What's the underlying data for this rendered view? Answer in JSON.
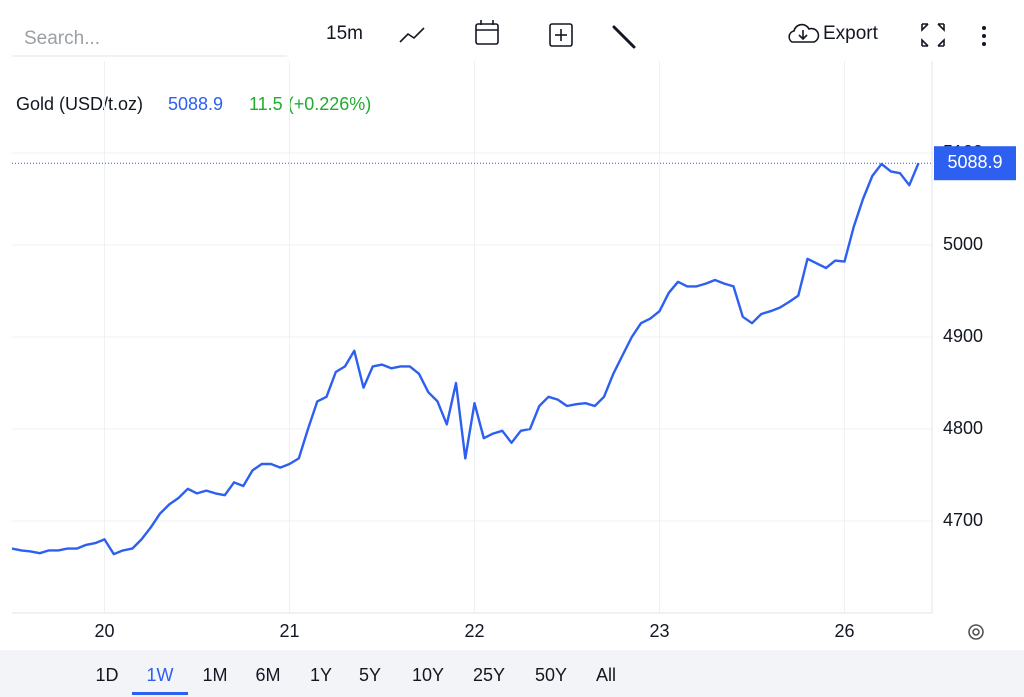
{
  "toolbar": {
    "search_placeholder": "Search...",
    "interval": "15m",
    "export": "Export"
  },
  "chart_data": {
    "type": "line",
    "series": [
      {
        "name": "Gold (USD/t.oz)",
        "color": "#2d5ff0",
        "values": [
          4670,
          4668,
          4667,
          4665,
          4668,
          4668,
          4670,
          4670,
          4674,
          4676,
          4680,
          4664,
          4668,
          4670,
          4680,
          4693,
          4708,
          4718,
          4725,
          4735,
          4730,
          4733,
          4730,
          4728,
          4742,
          4738,
          4755,
          4762,
          4762,
          4758,
          4762,
          4768,
          4800,
          4830,
          4835,
          4862,
          4868,
          4885,
          4845,
          4868,
          4870,
          4866,
          4868,
          4868,
          4860,
          4840,
          4830,
          4805,
          4850,
          4768,
          4828,
          4790,
          4795,
          4798,
          4785,
          4798,
          4800,
          4825,
          4835,
          4832,
          4825,
          4827,
          4828,
          4825,
          4835,
          4860,
          4880,
          4900,
          4915,
          4920,
          4928,
          4948,
          4960,
          4955,
          4955,
          4958,
          4962,
          4958,
          4955,
          4922,
          4915,
          4925,
          4928,
          4932,
          4938,
          4945,
          4985,
          4980,
          4975,
          4983,
          4982,
          5020,
          5050,
          5075,
          5088,
          5080,
          5078,
          5065,
          5088.9
        ]
      }
    ],
    "categories": [
      null,
      null,
      null,
      null,
      null,
      null,
      null,
      null,
      null,
      null,
      "20",
      null,
      null,
      null,
      null,
      null,
      null,
      null,
      null,
      null,
      null,
      null,
      null,
      null,
      null,
      null,
      null,
      null,
      null,
      null,
      "21",
      null,
      null,
      null,
      null,
      null,
      null,
      null,
      null,
      null,
      null,
      null,
      null,
      null,
      null,
      null,
      null,
      null,
      null,
      null,
      "22",
      null,
      null,
      null,
      null,
      null,
      null,
      null,
      null,
      null,
      null,
      null,
      null,
      null,
      null,
      null,
      null,
      null,
      null,
      null,
      "23",
      null,
      null,
      null,
      null,
      null,
      null,
      null,
      null,
      null,
      null,
      null,
      null,
      null,
      null,
      null,
      null,
      null,
      null,
      null,
      "26",
      null,
      null,
      null,
      null,
      null,
      null,
      null,
      null
    ],
    "last_value": 5088.9,
    "change_label": "11.5 (+0.226%)",
    "change_color": "#22ab2f",
    "ylim": [
      4600,
      5200
    ],
    "yticks": [
      4700,
      4800,
      4900,
      5000,
      5100
    ],
    "grid": true
  },
  "range_buttons": [
    "1D",
    "1W",
    "1M",
    "6M",
    "1Y",
    "5Y",
    "10Y",
    "25Y",
    "50Y",
    "All"
  ],
  "selected_range": 1
}
